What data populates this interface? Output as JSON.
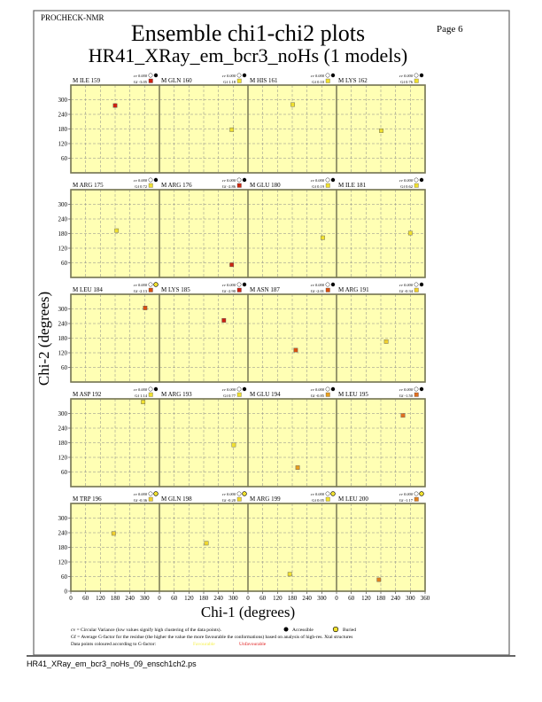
{
  "header": {
    "program": "PROCHECK-NMR",
    "page": "Page  6",
    "title": "Ensemble chi1-chi2 plots",
    "subtitle": "HR41_XRay_em_bcr3_noHs (1 models)"
  },
  "footer": {
    "filename": "HR41_XRay_em_bcr3_noHs_09_ensch1ch2.ps"
  },
  "legend": {
    "cv_text": "cv = Circular Variance (low values signify high clustering of the data points).",
    "accessible": "Accessible",
    "buried": "Buried",
    "gf_text": "Gf = Average G-factor for the residue (the higher the value the more favourable the conformations) based on analysis of high-res. Xtal structures",
    "colour_text": "Data points coloured according to G-factor:",
    "favourable": "Favourable",
    "unfavourable": "Unfavourable",
    "favourable_color": "#f5f04a",
    "unfavourable_color": "#e02020"
  },
  "colors": {
    "plot_background": "#ffffb4",
    "panel_border": "#777755"
  },
  "chart_data": {
    "type": "scatter",
    "xlabel": "Chi-1 (degrees)",
    "ylabel": "Chi-2 (degrees)",
    "xlim": [
      0,
      360
    ],
    "ylim": [
      0,
      360
    ],
    "xticks": [
      0,
      60,
      120,
      180,
      240,
      300,
      360
    ],
    "yticks": [
      0,
      60,
      120,
      180,
      240,
      300
    ],
    "grid": true,
    "panels": [
      {
        "residue": "M ILE 159",
        "cv": "cv 0.000",
        "gf": "Gf -3.05",
        "access": "accessible",
        "color": "#cc2010",
        "x": 180,
        "y": 276
      },
      {
        "residue": "M GLN 160",
        "cv": "cv 0.000",
        "gf": "Gf  1.18",
        "access": "accessible",
        "color": "#f0e030",
        "x": 294,
        "y": 177
      },
      {
        "residue": "M HIS 161",
        "cv": "cv 0.000",
        "gf": "Gf  0.10",
        "access": "accessible",
        "color": "#f0e030",
        "x": 182,
        "y": 280
      },
      {
        "residue": "M LYS 162",
        "cv": "cv 0.000",
        "gf": "Gf  0.76",
        "access": "accessible",
        "color": "#f0e030",
        "x": 182,
        "y": 173
      },
      {
        "residue": "M ARG 175",
        "cv": "cv 0.000",
        "gf": "Gf  0.72",
        "access": "accessible",
        "color": "#f0e030",
        "x": 186,
        "y": 192
      },
      {
        "residue": "M ARG 176",
        "cv": "cv 0.000",
        "gf": "Gf -2.86",
        "access": "accessible",
        "color": "#cc2810",
        "x": 294,
        "y": 52
      },
      {
        "residue": "M GLU 180",
        "cv": "cv 0.000",
        "gf": "Gf  0.19",
        "access": "accessible",
        "color": "#f0e030",
        "x": 304,
        "y": 163
      },
      {
        "residue": "M ILE 181",
        "cv": "cv 0.000",
        "gf": "Gf  0.62",
        "access": "accessible",
        "color": "#f0e030",
        "x": 300,
        "y": 182
      },
      {
        "residue": "M LEU 184",
        "cv": "cv 0.000",
        "gf": "Gf -2.13",
        "access": "buried",
        "color": "#d85010",
        "x": 302,
        "y": 304
      },
      {
        "residue": "M LYS 185",
        "cv": "cv 0.000",
        "gf": "Gf -2.90",
        "access": "accessible",
        "color": "#cc2010",
        "x": 262,
        "y": 253
      },
      {
        "residue": "M ASN 187",
        "cv": "cv 0.000",
        "gf": "Gf -2.01",
        "access": "accessible",
        "color": "#d85010",
        "x": 194,
        "y": 131
      },
      {
        "residue": "M ARG 191",
        "cv": "cv 0.000",
        "gf": "Gf -0.34",
        "access": "accessible",
        "color": "#f0d030",
        "x": 202,
        "y": 166
      },
      {
        "residue": "M ASP 192",
        "cv": "cv 0.000",
        "gf": "Gf  1.14",
        "access": "accessible",
        "color": "#f0e030",
        "x": 294,
        "y": 347
      },
      {
        "residue": "M ARG 193",
        "cv": "cv 0.000",
        "gf": "Gf  0.77",
        "access": "accessible",
        "color": "#f0e030",
        "x": 302,
        "y": 171
      },
      {
        "residue": "M GLU 194",
        "cv": "cv 0.000",
        "gf": "Gf -0.85",
        "access": "accessible",
        "color": "#e8a020",
        "x": 202,
        "y": 78
      },
      {
        "residue": "M LEU 195",
        "cv": "cv 0.000",
        "gf": "Gf -1.50",
        "access": "accessible",
        "color": "#e07020",
        "x": 270,
        "y": 292
      },
      {
        "residue": "M TRP 196",
        "cv": "cv 0.000",
        "gf": "Gf -0.36",
        "access": "buried",
        "color": "#f0d030",
        "x": 174,
        "y": 237
      },
      {
        "residue": "M GLN 198",
        "cv": "cv 0.000",
        "gf": "Gf -0.20",
        "access": "buried",
        "color": "#f0d830",
        "x": 191,
        "y": 197
      },
      {
        "residue": "M ARG 199",
        "cv": "cv 0.000",
        "gf": "Gf  0.05",
        "access": "buried",
        "color": "#f0e030",
        "x": 170,
        "y": 70
      },
      {
        "residue": "M LEU 200",
        "cv": "cv 0.000",
        "gf": "Gf -1.17",
        "access": "buried",
        "color": "#e08020",
        "x": 172,
        "y": 47
      }
    ]
  }
}
